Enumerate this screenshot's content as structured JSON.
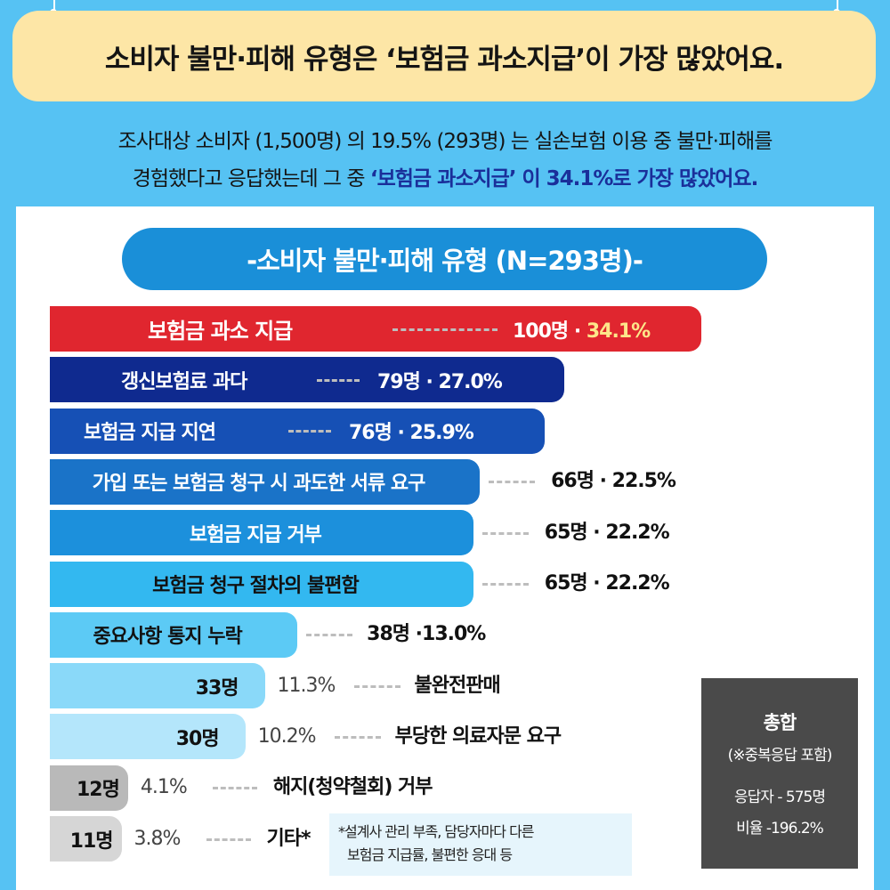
{
  "headline": "소비자 불만·피해 유형은 ‘보험금 과소지급’이 가장 많았어요.",
  "summary": {
    "line1": "조사대상 소비자 (1,500명) 의 19.5% (293명) 는 실손보험 이용 중 불만·피해를",
    "line2_plain": "경험했다고 응답했는데 그 중 ",
    "line2_highlight": "‘보험금 과소지급’ 이 34.1%로 가장 많았어요."
  },
  "chart_data": {
    "type": "bar",
    "title": "-소비자 불만·피해 유형 (N=293명)-",
    "categories": [
      "보험금 과소 지급",
      "갱신보험료 과다",
      "보험금 지급 지연",
      "가입 또는 보험금 청구 시 과도한 서류 요구",
      "보험금 지급 거부",
      "보험금 청구 절차의 불편함",
      "중요사항 통지 누락",
      "불완전판매",
      "부당한 의료자문 요구",
      "해지(청약철회) 거부",
      "기타*"
    ],
    "series": [
      {
        "values": [
          100,
          79,
          76,
          66,
          65,
          65,
          38,
          33,
          30,
          12,
          11
        ]
      }
    ],
    "count_labels": [
      "100명",
      "79명",
      "76명",
      "66명",
      "65명",
      "65명",
      "38명",
      "33명",
      "30명",
      "12명",
      "11명"
    ],
    "percent_labels": [
      "34.1%",
      "27.0%",
      "25.9%",
      "22.5%",
      "22.2%",
      "22.2%",
      "13.0%",
      "11.3%",
      "10.2%",
      "4.1%",
      "3.8%"
    ],
    "percent_values": [
      34.1,
      27.0,
      25.9,
      22.5,
      22.2,
      22.2,
      13.0,
      11.3,
      10.2,
      4.1,
      3.8
    ],
    "bar_colors": [
      "#e0262f",
      "#0f2a8f",
      "#1650b5",
      "#1a73c8",
      "#1c90dc",
      "#33b8f0",
      "#5ccaf5",
      "#8ad9f9",
      "#b4e6fb",
      "#b9b9b9",
      "#d6d6d6"
    ],
    "label_colors": [
      "#ffffff",
      "#ffffff",
      "#ffffff",
      "#ffffff",
      "#ffffff",
      "#111111",
      "#111111",
      "#111111",
      "#111111",
      "#111111",
      "#111111"
    ],
    "accent_percent_color": "#fde68a"
  },
  "total": {
    "title": "총합",
    "note": "(※중복응답 포함)",
    "respondents": "응답자 - 575명",
    "ratio": "비율 -196.2%"
  },
  "footnote": {
    "line1": "*설계사 관리 부족, 담당자마다 다른",
    "line2": "보험금 지급률, 불편한 응대 등"
  }
}
